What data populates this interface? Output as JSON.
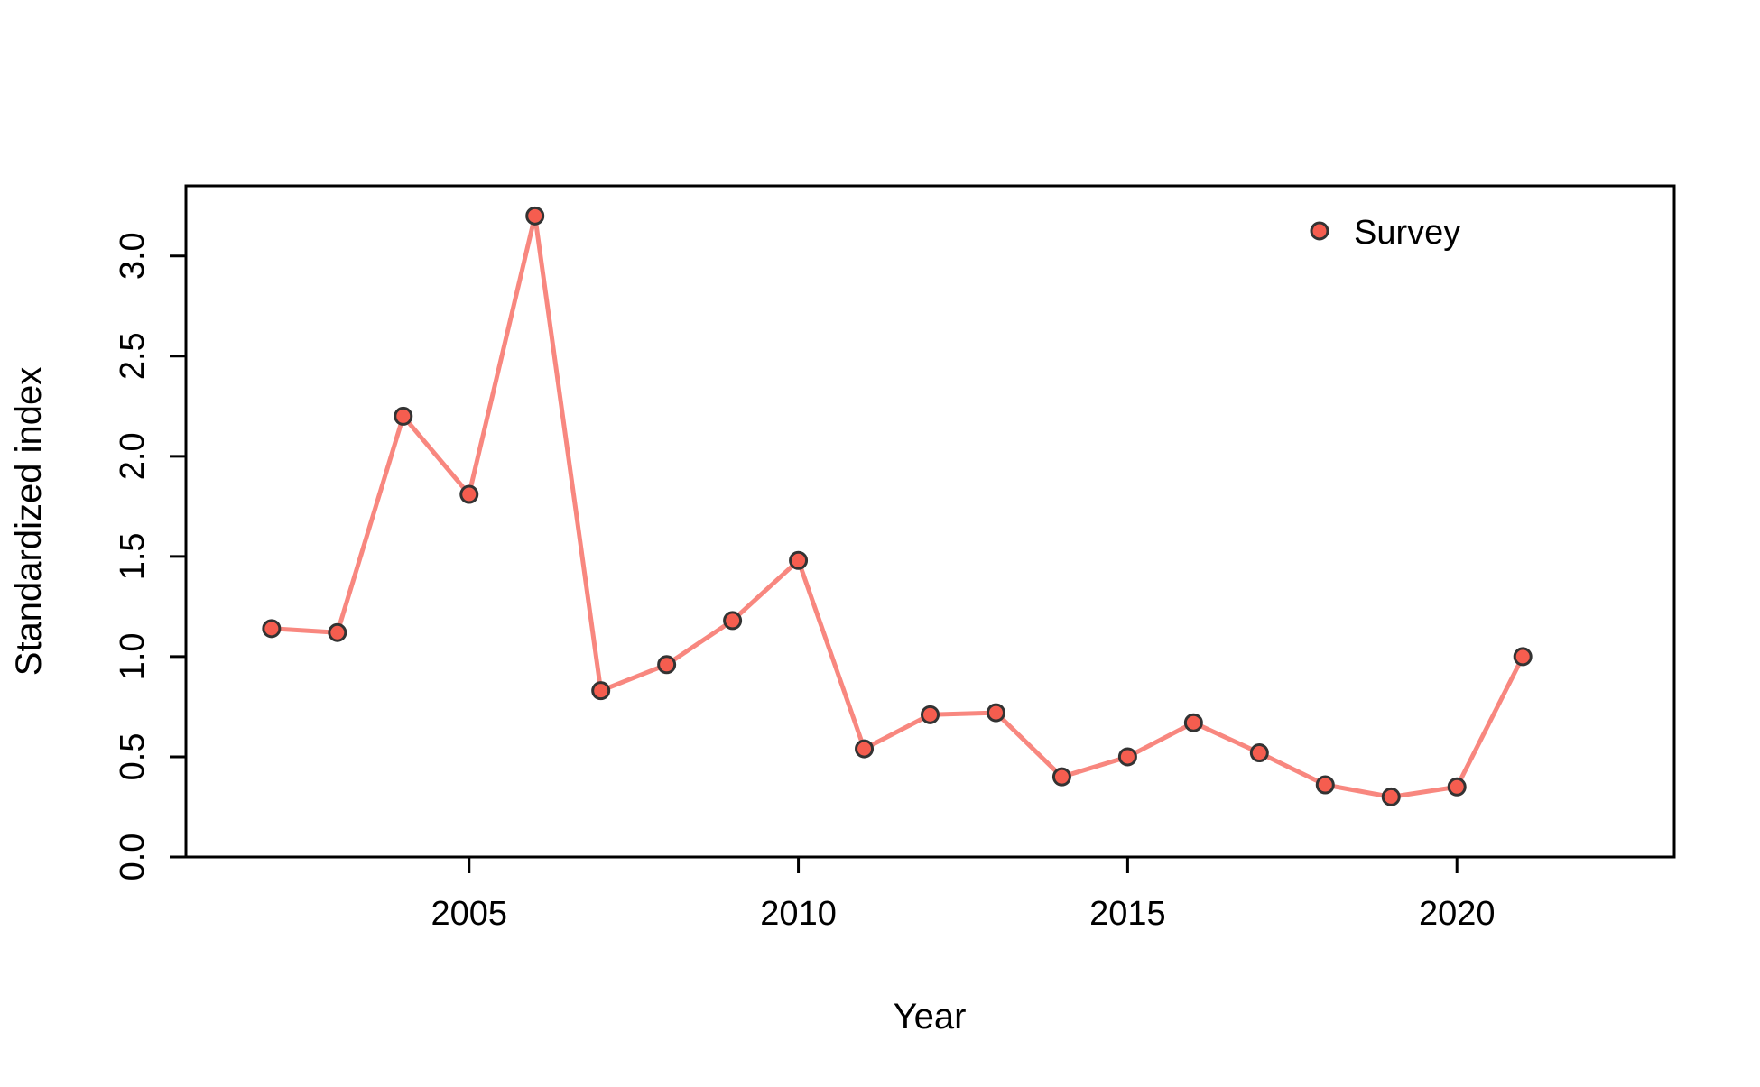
{
  "chart_data": {
    "type": "line",
    "title": "",
    "xlabel": "Year",
    "ylabel": "Standardized index",
    "xlim": [
      2000.7,
      2023.3
    ],
    "ylim": [
      0,
      3.35
    ],
    "xticks": [
      2005,
      2010,
      2015,
      2020
    ],
    "yticks": [
      "0.0",
      "0.5",
      "1.0",
      "1.5",
      "2.0",
      "2.5",
      "3.0"
    ],
    "grid": false,
    "legend_position": "top-right",
    "series": [
      {
        "name": "Survey",
        "line_color": "#f8877f",
        "marker_fill": "#f55d4f",
        "marker_edge": "#333333",
        "x": [
          2002,
          2003,
          2004,
          2005,
          2006,
          2007,
          2008,
          2009,
          2010,
          2011,
          2012,
          2013,
          2014,
          2015,
          2016,
          2017,
          2018,
          2019,
          2020,
          2021
        ],
        "y": [
          1.14,
          1.12,
          2.2,
          1.81,
          3.2,
          0.83,
          0.96,
          1.18,
          1.48,
          0.54,
          0.71,
          0.72,
          0.4,
          0.5,
          0.67,
          0.52,
          0.36,
          0.3,
          0.35,
          1.0
        ]
      }
    ]
  }
}
